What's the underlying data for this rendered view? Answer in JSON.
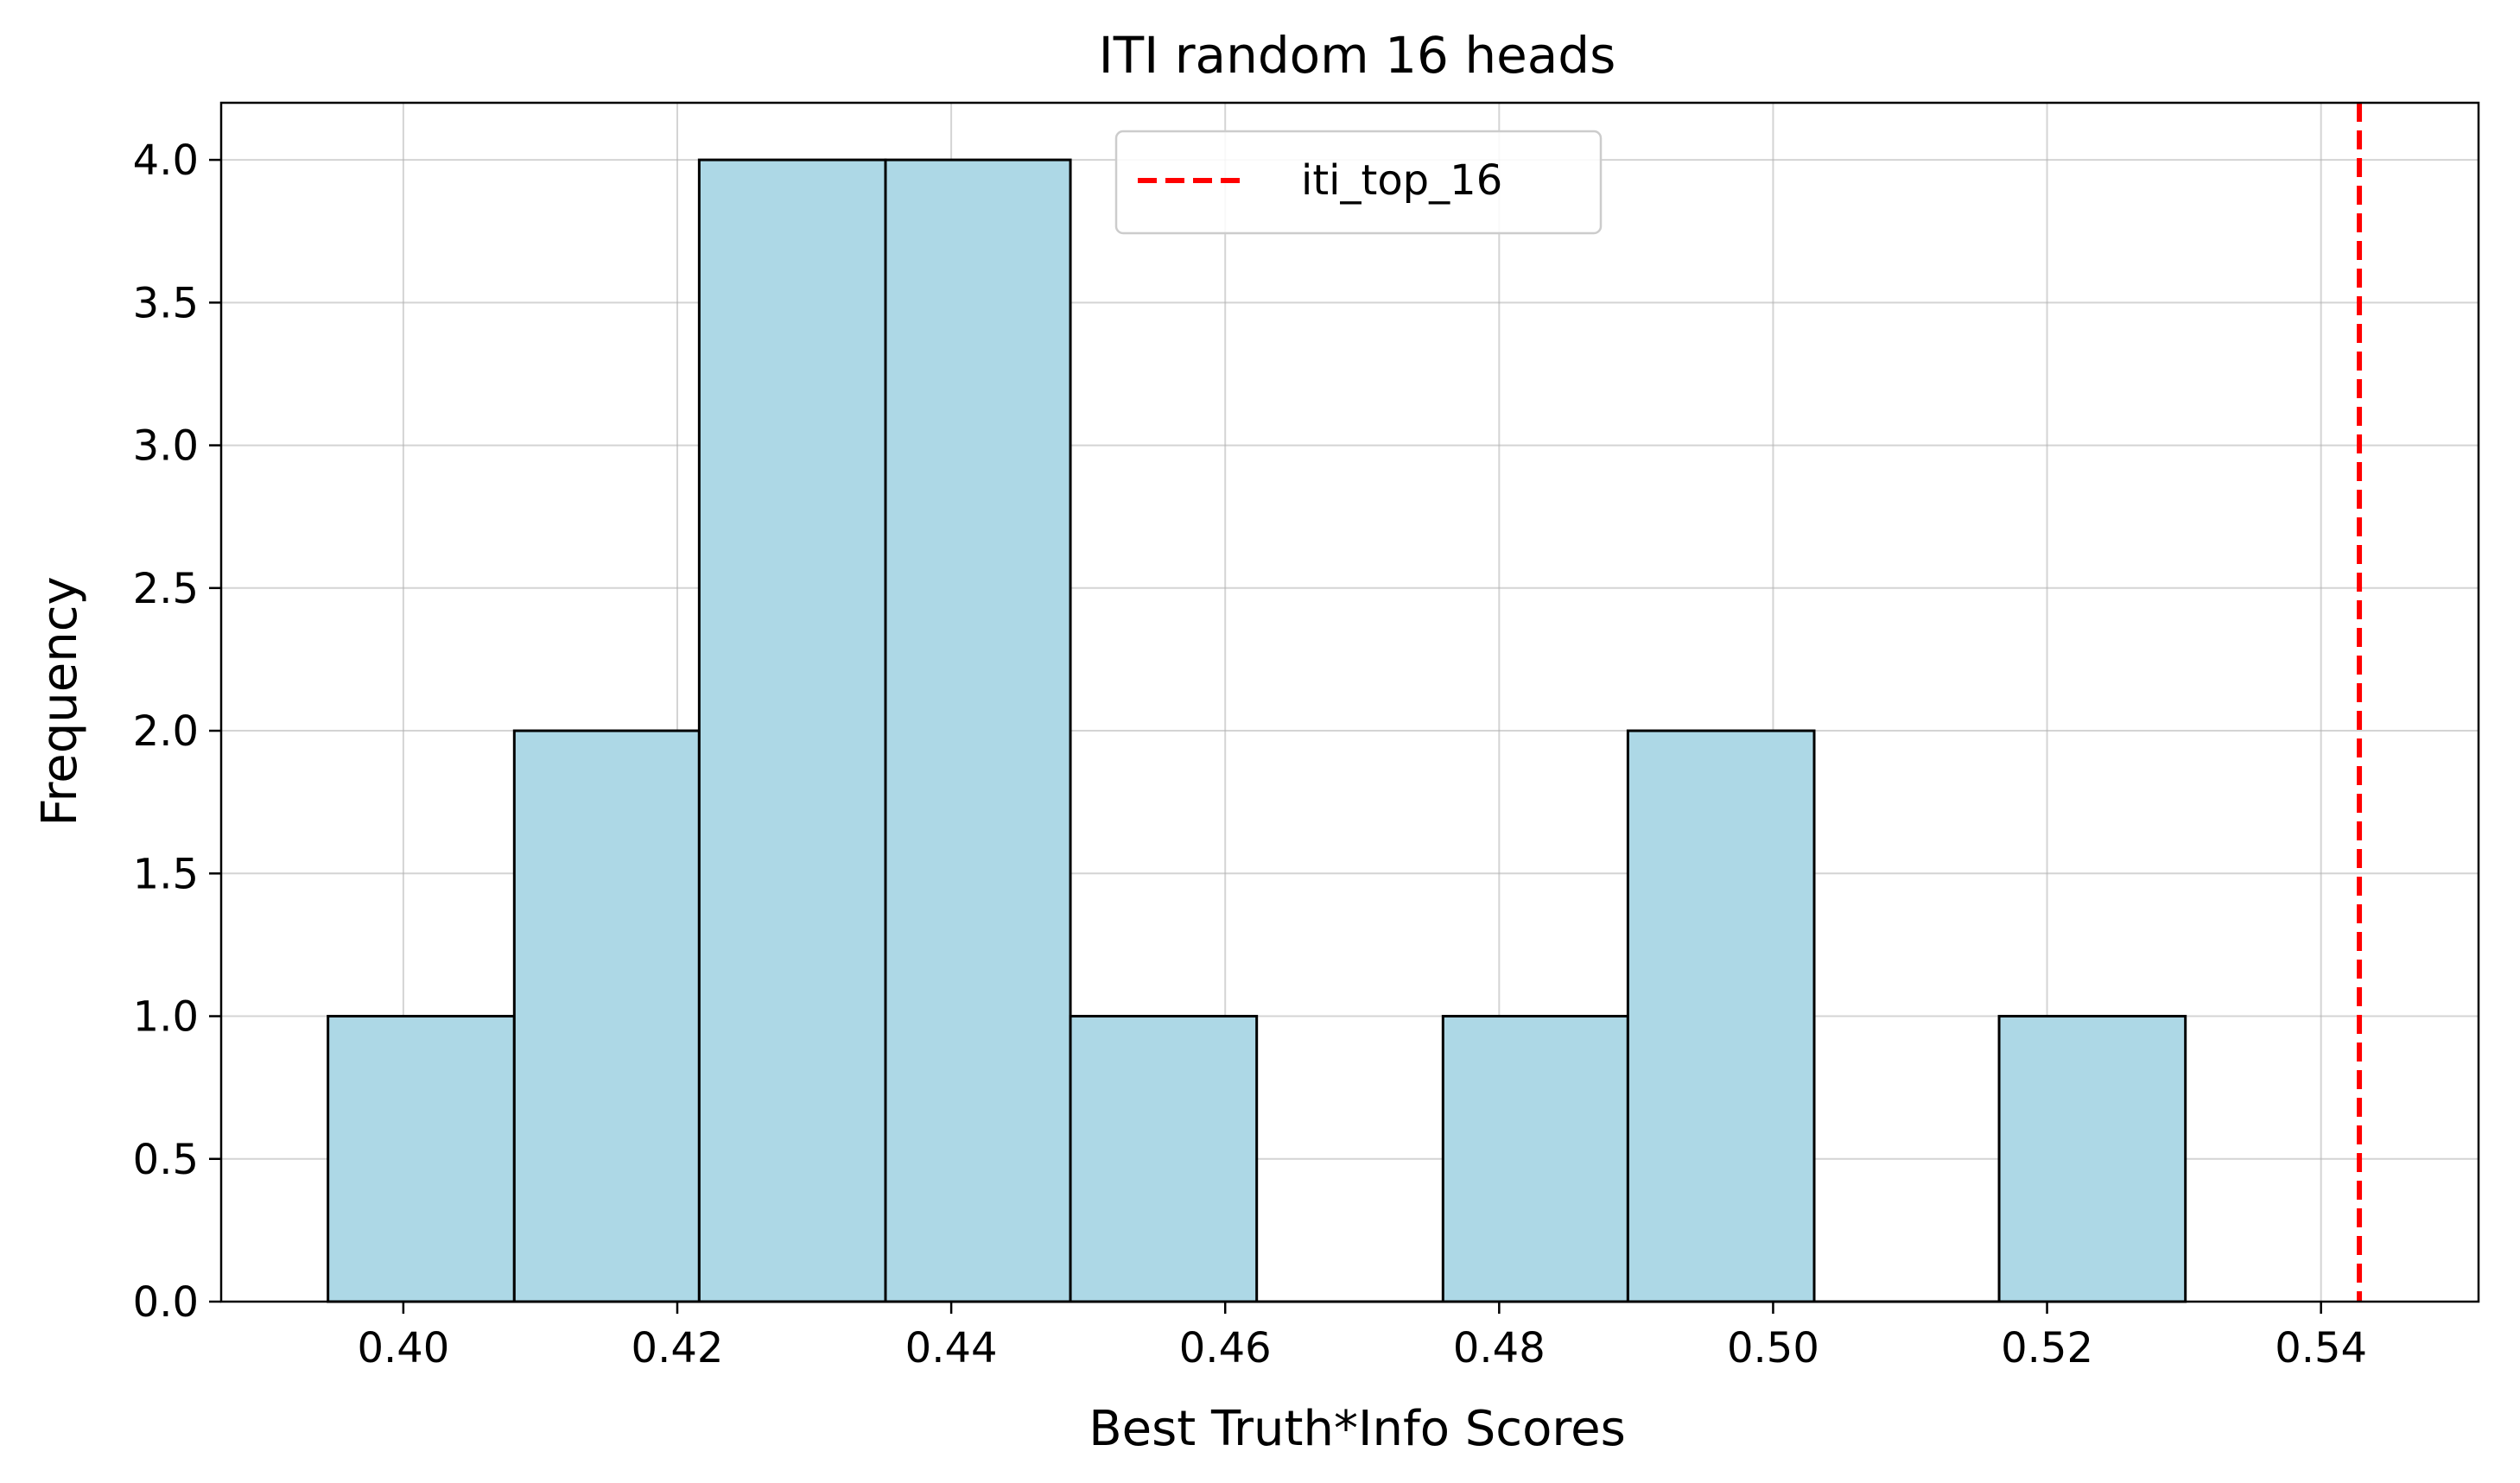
{
  "chart_data": {
    "type": "bar",
    "subtype": "histogram",
    "title": "ITI random 16 heads",
    "xlabel": "Best Truth*Info Scores",
    "ylabel": "Frequency",
    "xlim": [
      0.3867,
      0.5515
    ],
    "ylim": [
      0,
      4.2
    ],
    "xticks": [
      "0.40",
      "0.42",
      "0.44",
      "0.46",
      "0.48",
      "0.50",
      "0.52",
      "0.54"
    ],
    "yticks": [
      "0.0",
      "0.5",
      "1.0",
      "1.5",
      "2.0",
      "2.5",
      "3.0",
      "3.5",
      "4.0"
    ],
    "bins": [
      {
        "x0": 0.3945,
        "x1": 0.4081,
        "value": 1
      },
      {
        "x0": 0.4081,
        "x1": 0.4216,
        "value": 2
      },
      {
        "x0": 0.4216,
        "x1": 0.4352,
        "value": 4
      },
      {
        "x0": 0.4352,
        "x1": 0.4487,
        "value": 4
      },
      {
        "x0": 0.4487,
        "x1": 0.4623,
        "value": 1
      },
      {
        "x0": 0.4623,
        "x1": 0.4759,
        "value": 0
      },
      {
        "x0": 0.4759,
        "x1": 0.4894,
        "value": 1
      },
      {
        "x0": 0.4894,
        "x1": 0.503,
        "value": 2
      },
      {
        "x0": 0.503,
        "x1": 0.5165,
        "value": 0
      },
      {
        "x0": 0.5165,
        "x1": 0.5301,
        "value": 1
      }
    ],
    "bar_color": "#add8e6",
    "bar_edge_color": "#000000",
    "reference_line": {
      "name": "iti_top_16",
      "x": 0.5428,
      "color": "#ff0000",
      "style": "dashed"
    },
    "legend": {
      "position": "top-center",
      "entries": [
        "iti_top_16"
      ]
    },
    "grid": true
  }
}
